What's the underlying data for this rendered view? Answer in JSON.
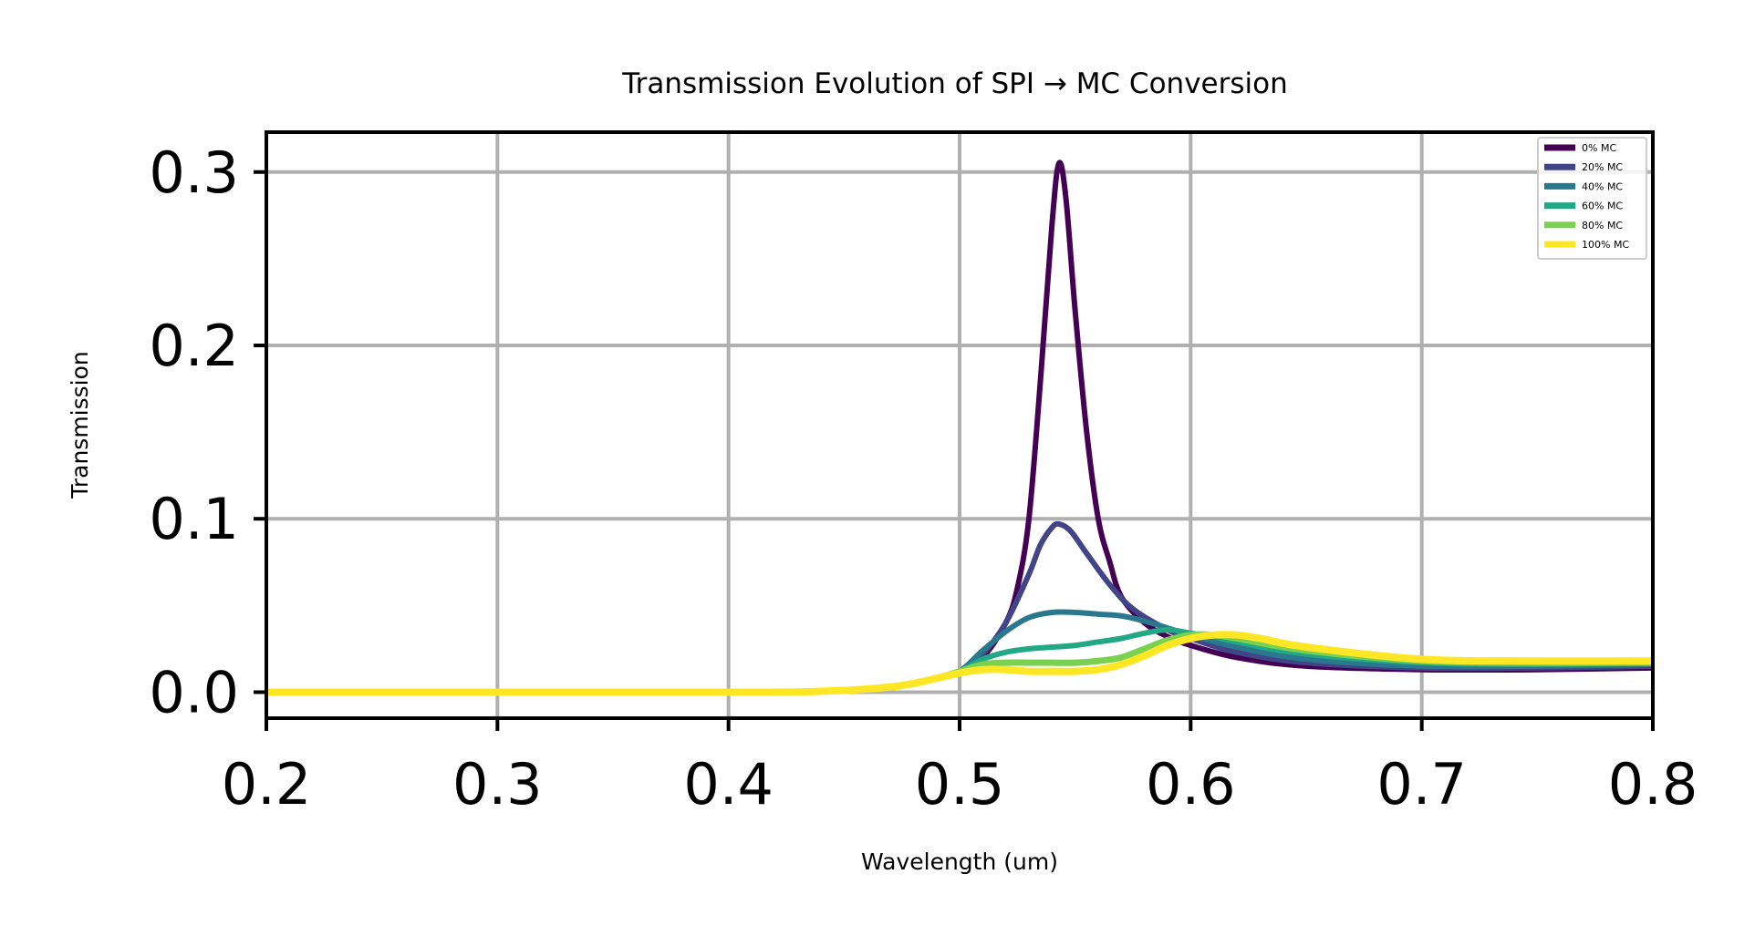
{
  "chart_data": {
    "type": "line",
    "title": "Transmission Evolution of SPI → MC Conversion",
    "xlabel": "Wavelength (um)",
    "ylabel": "Transmission",
    "xlim": [
      0.2,
      0.8
    ],
    "ylim": [
      -0.015,
      0.323
    ],
    "xticks": [
      0.2,
      0.3,
      0.4,
      0.5,
      0.6,
      0.7,
      0.8
    ],
    "xtick_labels": [
      "0.2",
      "0.3",
      "0.4",
      "0.5",
      "0.6",
      "0.7",
      "0.8"
    ],
    "yticks": [
      0.0,
      0.1,
      0.2,
      0.3
    ],
    "ytick_labels": [
      "0.0",
      "0.1",
      "0.2",
      "0.3"
    ],
    "grid": true,
    "legend_position": "top-right",
    "series": [
      {
        "name": "0% MC",
        "color": "#440154",
        "x": [
          0.2,
          0.35,
          0.42,
          0.45,
          0.47,
          0.48,
          0.49,
          0.5,
          0.51,
          0.52,
          0.525,
          0.53,
          0.535,
          0.54,
          0.543,
          0.546,
          0.55,
          0.555,
          0.56,
          0.565,
          0.57,
          0.58,
          0.59,
          0.6,
          0.62,
          0.65,
          0.7,
          0.75,
          0.8
        ],
        "y": [
          0.0,
          0.0,
          0.0,
          0.001,
          0.003,
          0.005,
          0.008,
          0.012,
          0.02,
          0.04,
          0.06,
          0.1,
          0.18,
          0.27,
          0.305,
          0.285,
          0.22,
          0.15,
          0.1,
          0.075,
          0.055,
          0.04,
          0.032,
          0.027,
          0.02,
          0.015,
          0.013,
          0.013,
          0.014
        ]
      },
      {
        "name": "20% MC",
        "color": "#414487",
        "x": [
          0.2,
          0.35,
          0.42,
          0.45,
          0.47,
          0.48,
          0.49,
          0.5,
          0.51,
          0.52,
          0.53,
          0.535,
          0.54,
          0.543,
          0.548,
          0.555,
          0.565,
          0.575,
          0.59,
          0.6,
          0.62,
          0.65,
          0.7,
          0.75,
          0.8
        ],
        "y": [
          0.0,
          0.0,
          0.0,
          0.001,
          0.003,
          0.005,
          0.008,
          0.012,
          0.022,
          0.04,
          0.068,
          0.085,
          0.095,
          0.097,
          0.093,
          0.08,
          0.062,
          0.048,
          0.036,
          0.031,
          0.023,
          0.017,
          0.014,
          0.014,
          0.015
        ]
      },
      {
        "name": "40% MC",
        "color": "#2a788e",
        "x": [
          0.2,
          0.35,
          0.42,
          0.45,
          0.47,
          0.48,
          0.49,
          0.5,
          0.51,
          0.52,
          0.53,
          0.54,
          0.55,
          0.56,
          0.57,
          0.58,
          0.59,
          0.6,
          0.62,
          0.65,
          0.7,
          0.75,
          0.8
        ],
        "y": [
          0.0,
          0.0,
          0.0,
          0.001,
          0.003,
          0.005,
          0.008,
          0.012,
          0.024,
          0.035,
          0.043,
          0.046,
          0.046,
          0.045,
          0.044,
          0.041,
          0.037,
          0.033,
          0.026,
          0.019,
          0.015,
          0.015,
          0.016
        ]
      },
      {
        "name": "60% MC",
        "color": "#22a884",
        "x": [
          0.2,
          0.35,
          0.42,
          0.45,
          0.47,
          0.48,
          0.49,
          0.5,
          0.51,
          0.52,
          0.53,
          0.54,
          0.55,
          0.56,
          0.57,
          0.58,
          0.59,
          0.6,
          0.61,
          0.62,
          0.65,
          0.7,
          0.75,
          0.8
        ],
        "y": [
          0.0,
          0.0,
          0.0,
          0.001,
          0.003,
          0.005,
          0.008,
          0.012,
          0.019,
          0.023,
          0.025,
          0.026,
          0.027,
          0.029,
          0.031,
          0.034,
          0.036,
          0.034,
          0.032,
          0.029,
          0.022,
          0.017,
          0.016,
          0.017
        ]
      },
      {
        "name": "80% MC",
        "color": "#7ad151",
        "x": [
          0.2,
          0.35,
          0.42,
          0.45,
          0.47,
          0.48,
          0.49,
          0.5,
          0.51,
          0.52,
          0.53,
          0.54,
          0.55,
          0.56,
          0.57,
          0.58,
          0.59,
          0.6,
          0.61,
          0.62,
          0.65,
          0.7,
          0.75,
          0.8
        ],
        "y": [
          0.0,
          0.0,
          0.0,
          0.001,
          0.003,
          0.005,
          0.008,
          0.012,
          0.016,
          0.017,
          0.017,
          0.017,
          0.017,
          0.018,
          0.02,
          0.025,
          0.03,
          0.033,
          0.033,
          0.031,
          0.024,
          0.018,
          0.017,
          0.017
        ]
      },
      {
        "name": "100% MC",
        "color": "#fde725",
        "x": [
          0.2,
          0.35,
          0.42,
          0.45,
          0.47,
          0.48,
          0.49,
          0.5,
          0.51,
          0.52,
          0.53,
          0.54,
          0.55,
          0.56,
          0.57,
          0.58,
          0.59,
          0.6,
          0.61,
          0.62,
          0.63,
          0.65,
          0.7,
          0.75,
          0.8
        ],
        "y": [
          0.0,
          0.0,
          0.0,
          0.001,
          0.003,
          0.005,
          0.008,
          0.011,
          0.013,
          0.013,
          0.012,
          0.012,
          0.012,
          0.013,
          0.016,
          0.021,
          0.027,
          0.031,
          0.033,
          0.033,
          0.031,
          0.026,
          0.019,
          0.018,
          0.018
        ]
      }
    ]
  }
}
